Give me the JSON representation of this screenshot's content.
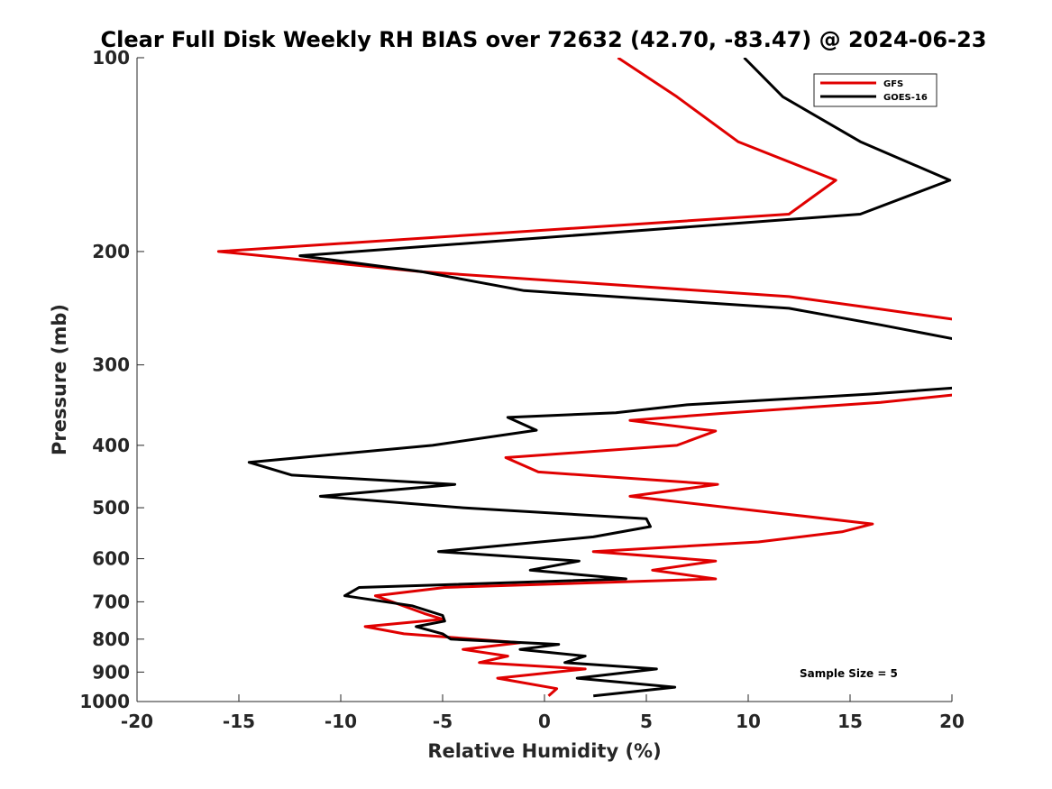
{
  "chart_data": {
    "type": "line",
    "title": "Clear Full Disk Weekly RH BIAS over 72632 (42.70, -83.47) @ 2024-06-23",
    "xlabel": "Relative Humidity (%)",
    "ylabel": "Pressure (mb)",
    "xlim": [
      -20,
      20
    ],
    "ylim": [
      1000,
      100
    ],
    "yscale": "log",
    "x_ticks": [
      "-20",
      "-15",
      "-10",
      "-5",
      "0",
      "5",
      "10",
      "15",
      "20"
    ],
    "y_ticks": [
      "100",
      "200",
      "300",
      "400",
      "500",
      "600",
      "700",
      "800",
      "900",
      "1000"
    ],
    "legend_position": "top-right",
    "annotation": "Sample Size = 5",
    "series": [
      {
        "name": "GFS",
        "color": "#e00000",
        "points": [
          [
            3.6,
            100
          ],
          [
            6.5,
            115
          ],
          [
            9.5,
            135
          ],
          [
            14.3,
            155
          ],
          [
            12.0,
            175
          ],
          [
            -16.0,
            200
          ],
          [
            -6.0,
            215
          ],
          [
            12.0,
            235
          ],
          [
            16.2,
            245
          ],
          [
            20.5,
            256
          ],
          [
            20.5,
            333
          ],
          [
            16.5,
            343
          ],
          [
            8.6,
            357
          ],
          [
            4.2,
            366
          ],
          [
            8.4,
            380
          ],
          [
            6.5,
            400
          ],
          [
            -1.9,
            418
          ],
          [
            -0.3,
            440
          ],
          [
            8.5,
            460
          ],
          [
            4.2,
            480
          ],
          [
            11.5,
            510
          ],
          [
            16.1,
            530
          ],
          [
            14.6,
            545
          ],
          [
            10.5,
            565
          ],
          [
            2.4,
            585
          ],
          [
            8.4,
            605
          ],
          [
            5.3,
            625
          ],
          [
            8.4,
            645
          ],
          [
            -4.9,
            665
          ],
          [
            -8.3,
            685
          ],
          [
            -5.9,
            730
          ],
          [
            -5.0,
            745
          ],
          [
            -8.8,
            765
          ],
          [
            -6.9,
            785
          ],
          [
            -1.2,
            810
          ],
          [
            -4.0,
            830
          ],
          [
            -1.8,
            850
          ],
          [
            -3.2,
            870
          ],
          [
            2.0,
            890
          ],
          [
            -2.3,
            920
          ],
          [
            0.6,
            955
          ],
          [
            0.2,
            980
          ]
        ]
      },
      {
        "name": "GOES-16",
        "color": "#000000",
        "points": [
          [
            9.8,
            100
          ],
          [
            11.7,
            115
          ],
          [
            15.5,
            135
          ],
          [
            19.9,
            155
          ],
          [
            15.5,
            175
          ],
          [
            -12.0,
            203
          ],
          [
            -6.0,
            215
          ],
          [
            -1.0,
            230
          ],
          [
            12.0,
            245
          ],
          [
            16.5,
            260
          ],
          [
            20.5,
            275
          ],
          [
            20.5,
            325
          ],
          [
            16.0,
            333
          ],
          [
            7.0,
            346
          ],
          [
            3.5,
            356
          ],
          [
            -1.8,
            362
          ],
          [
            -0.4,
            379
          ],
          [
            -5.5,
            400
          ],
          [
            -14.5,
            425
          ],
          [
            -12.4,
            445
          ],
          [
            -4.4,
            460
          ],
          [
            -11.0,
            480
          ],
          [
            -4.0,
            500
          ],
          [
            5.0,
            520
          ],
          [
            5.2,
            535
          ],
          [
            2.4,
            555
          ],
          [
            -5.2,
            585
          ],
          [
            1.7,
            605
          ],
          [
            -0.7,
            625
          ],
          [
            4.0,
            645
          ],
          [
            -9.1,
            665
          ],
          [
            -9.8,
            685
          ],
          [
            -6.5,
            710
          ],
          [
            -5.0,
            735
          ],
          [
            -4.9,
            750
          ],
          [
            -6.3,
            765
          ],
          [
            -5.0,
            785
          ],
          [
            -4.6,
            800
          ],
          [
            0.7,
            815
          ],
          [
            -1.2,
            830
          ],
          [
            2.0,
            850
          ],
          [
            1.0,
            870
          ],
          [
            5.5,
            890
          ],
          [
            1.6,
            920
          ],
          [
            6.4,
            950
          ],
          [
            2.4,
            980
          ]
        ]
      }
    ]
  }
}
